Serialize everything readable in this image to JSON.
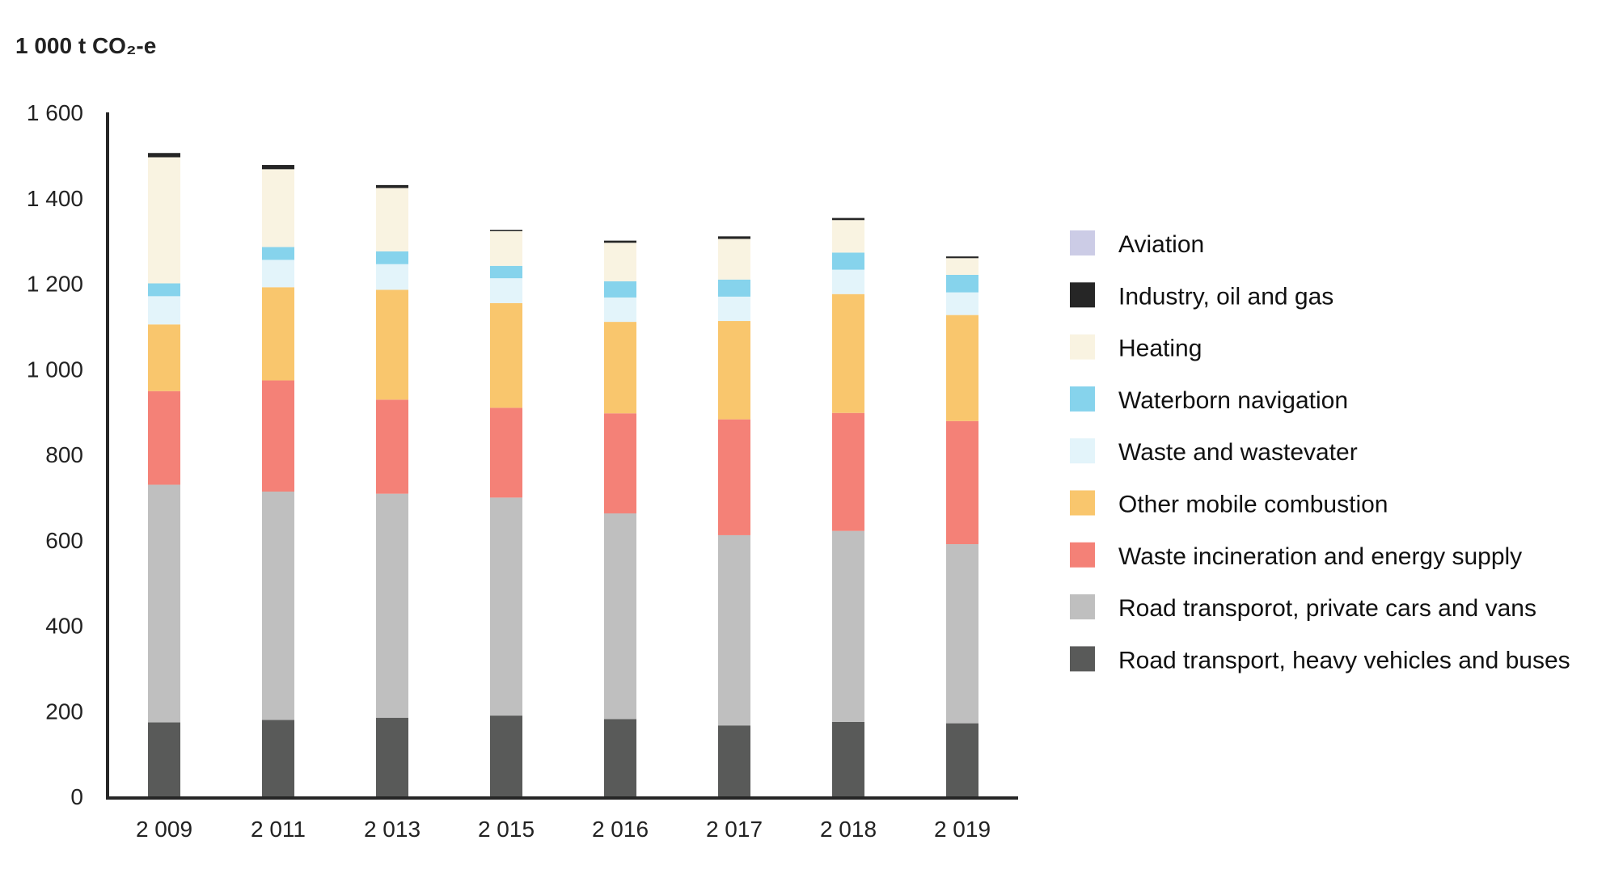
{
  "chart_data": {
    "type": "bar",
    "stacked": true,
    "title": "1 000 t CO₂-e",
    "xlabel": "",
    "ylabel": "",
    "categories": [
      "2 009",
      "2 011",
      "2 013",
      "2 015",
      "2 016",
      "2 017",
      "2 018",
      "2 019"
    ],
    "ylim": [
      0,
      1600
    ],
    "yticks": [
      0,
      200,
      400,
      600,
      800,
      1000,
      1200,
      1400,
      1600
    ],
    "ytick_labels": [
      "0",
      "200",
      "400",
      "600",
      "800",
      "1 000",
      "1 200",
      "1 400",
      "1 600"
    ],
    "grid": false,
    "legend_position": "right",
    "series": [
      {
        "name": "Road transport, heavy vehicles and buses",
        "color": "#595a59",
        "values": [
          173,
          179,
          184,
          189,
          181,
          166,
          174,
          171
        ]
      },
      {
        "name": "Road transporot, private cars and vans",
        "color": "#bfbfbf",
        "values": [
          556,
          534,
          524,
          510,
          481,
          445,
          447,
          419
        ]
      },
      {
        "name": "Waste incineration and energy supply",
        "color": "#f48177",
        "values": [
          219,
          260,
          220,
          210,
          234,
          271,
          276,
          288
        ]
      },
      {
        "name": "Other mobile combustion",
        "color": "#f9c66d",
        "values": [
          156,
          218,
          257,
          245,
          214,
          230,
          278,
          248
        ]
      },
      {
        "name": "Waste and wastevater",
        "color": "#e3f4fa",
        "values": [
          66,
          64,
          60,
          58,
          57,
          57,
          57,
          53
        ]
      },
      {
        "name": "Waterborn navigation",
        "color": "#86d3ec",
        "values": [
          30,
          30,
          30,
          29,
          38,
          40,
          40,
          41
        ]
      },
      {
        "name": "Heating",
        "color": "#f9f3e1",
        "values": [
          295,
          182,
          148,
          81,
          90,
          95,
          76,
          39
        ]
      },
      {
        "name": "Industry, oil and gas",
        "color": "#262626",
        "values": [
          10,
          10,
          7,
          3,
          5,
          6,
          5,
          4
        ]
      },
      {
        "name": "Aviation",
        "color": "#cccce6",
        "values": [
          0,
          0,
          0,
          0,
          0,
          0,
          0,
          0
        ]
      }
    ]
  }
}
